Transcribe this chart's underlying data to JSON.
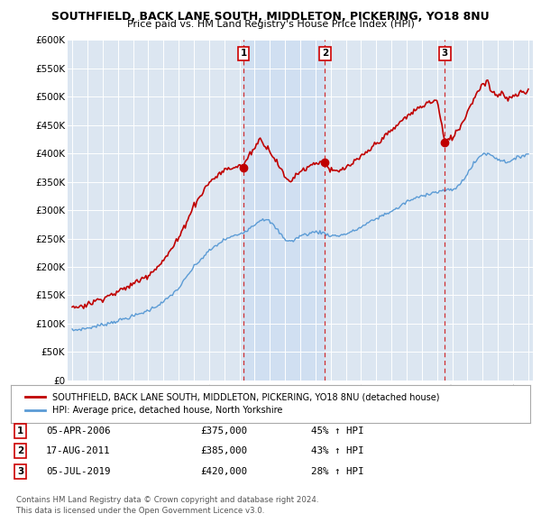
{
  "title": "SOUTHFIELD, BACK LANE SOUTH, MIDDLETON, PICKERING, YO18 8NU",
  "subtitle": "Price paid vs. HM Land Registry's House Price Index (HPI)",
  "legend_line1": "SOUTHFIELD, BACK LANE SOUTH, MIDDLETON, PICKERING, YO18 8NU (detached house)",
  "legend_line2": "HPI: Average price, detached house, North Yorkshire",
  "footer_line1": "Contains HM Land Registry data © Crown copyright and database right 2024.",
  "footer_line2": "This data is licensed under the Open Government Licence v3.0.",
  "transactions": [
    {
      "num": 1,
      "date": "05-APR-2006",
      "price": 375000,
      "pct": "45% ↑ HPI",
      "year": 2006.27
    },
    {
      "num": 2,
      "date": "17-AUG-2011",
      "price": 385000,
      "pct": "43% ↑ HPI",
      "year": 2011.63
    },
    {
      "num": 3,
      "date": "05-JUL-2019",
      "price": 420000,
      "pct": "28% ↑ HPI",
      "year": 2019.51
    }
  ],
  "hpi_color": "#5b9bd5",
  "price_color": "#c00000",
  "shade_color": "#dce6f1",
  "background_color": "#dce6f1",
  "grid_color": "#ffffff",
  "ylim": [
    0,
    600000
  ],
  "yticks": [
    0,
    50000,
    100000,
    150000,
    200000,
    250000,
    300000,
    350000,
    400000,
    450000,
    500000,
    550000,
    600000
  ],
  "xmin": 1994.7,
  "xmax": 2025.3
}
